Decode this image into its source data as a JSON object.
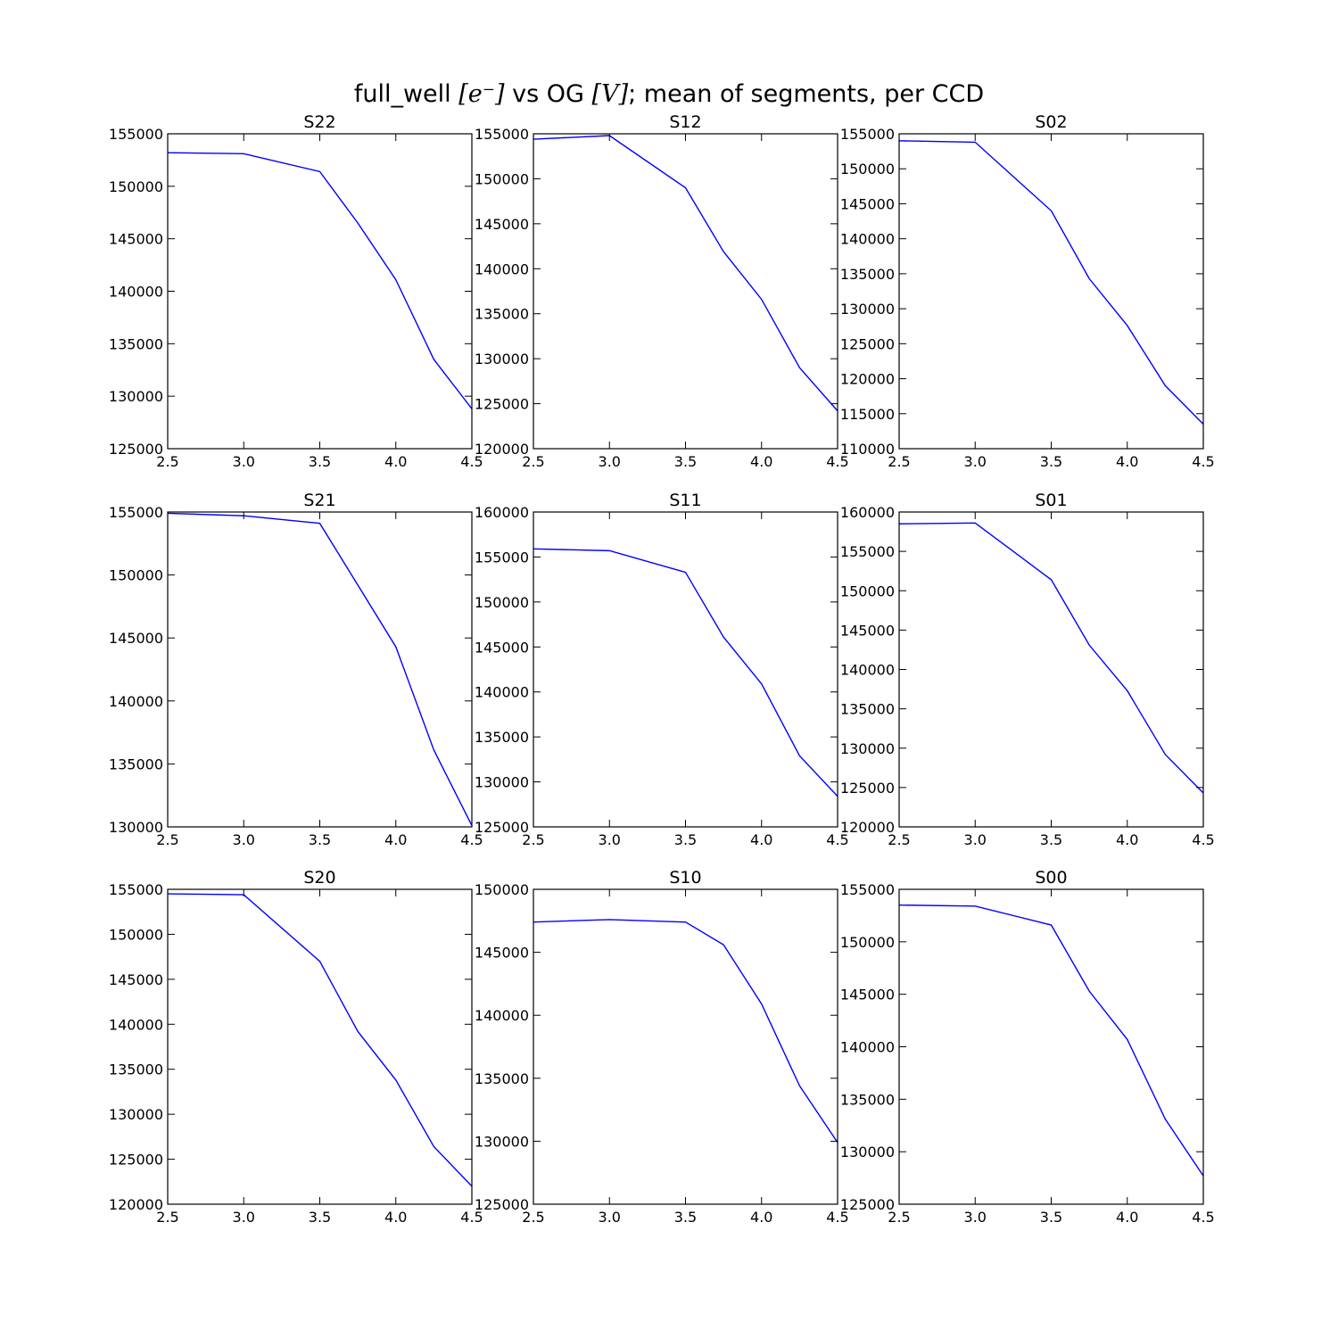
{
  "figure": {
    "suptitle_prefix": "full_well ",
    "suptitle_math1": "[e⁻]",
    "suptitle_mid": " vs OG ",
    "suptitle_math2": "[V]",
    "suptitle_suffix": "; mean of segments, per CCD"
  },
  "chart_data": [
    {
      "type": "line",
      "title": "S22",
      "xlim": [
        2.5,
        4.5
      ],
      "ylim": [
        125000,
        155000
      ],
      "xticks": [
        2.5,
        3.0,
        3.5,
        4.0,
        4.5
      ],
      "yticks": [
        125000,
        130000,
        135000,
        140000,
        145000,
        150000,
        155000
      ],
      "color": "#0000ff",
      "x": [
        2.5,
        3.0,
        3.5,
        3.75,
        4.0,
        4.25,
        4.5
      ],
      "y": [
        153200,
        153100,
        151400,
        146500,
        141100,
        133500,
        128800
      ]
    },
    {
      "type": "line",
      "title": "S12",
      "xlim": [
        2.5,
        4.5
      ],
      "ylim": [
        120000,
        155000
      ],
      "xticks": [
        2.5,
        3.0,
        3.5,
        4.0,
        4.5
      ],
      "yticks": [
        120000,
        125000,
        130000,
        135000,
        140000,
        145000,
        150000,
        155000
      ],
      "color": "#0000ff",
      "x": [
        2.5,
        3.0,
        3.5,
        3.75,
        4.0,
        4.25,
        4.5
      ],
      "y": [
        154400,
        154800,
        149000,
        141900,
        136600,
        129000,
        124200
      ]
    },
    {
      "type": "line",
      "title": "S02",
      "xlim": [
        2.5,
        4.5
      ],
      "ylim": [
        110000,
        155000
      ],
      "xticks": [
        2.5,
        3.0,
        3.5,
        4.0,
        4.5
      ],
      "yticks": [
        110000,
        115000,
        120000,
        125000,
        130000,
        135000,
        140000,
        145000,
        150000,
        155000
      ],
      "color": "#0000ff",
      "x": [
        2.5,
        3.0,
        3.5,
        3.75,
        4.0,
        4.25,
        4.5
      ],
      "y": [
        154000,
        153800,
        144000,
        134300,
        127600,
        119000,
        113500
      ]
    },
    {
      "type": "line",
      "title": "S21",
      "xlim": [
        2.5,
        4.5
      ],
      "ylim": [
        130000,
        155000
      ],
      "xticks": [
        2.5,
        3.0,
        3.5,
        4.0,
        4.5
      ],
      "yticks": [
        130000,
        135000,
        140000,
        145000,
        150000,
        155000
      ],
      "color": "#0000ff",
      "x": [
        2.5,
        3.0,
        3.5,
        3.75,
        4.0,
        4.25,
        4.5
      ],
      "y": [
        154900,
        154700,
        154100,
        149200,
        144300,
        136100,
        130100
      ]
    },
    {
      "type": "line",
      "title": "S11",
      "xlim": [
        2.5,
        4.5
      ],
      "ylim": [
        125000,
        160000
      ],
      "xticks": [
        2.5,
        3.0,
        3.5,
        4.0,
        4.5
      ],
      "yticks": [
        125000,
        130000,
        135000,
        140000,
        145000,
        150000,
        155000,
        160000
      ],
      "color": "#0000ff",
      "x": [
        2.5,
        3.0,
        3.5,
        3.75,
        4.0,
        4.25,
        4.5
      ],
      "y": [
        155900,
        155700,
        153300,
        146100,
        140900,
        132900,
        128400
      ]
    },
    {
      "type": "line",
      "title": "S01",
      "xlim": [
        2.5,
        4.5
      ],
      "ylim": [
        120000,
        160000
      ],
      "xticks": [
        2.5,
        3.0,
        3.5,
        4.0,
        4.5
      ],
      "yticks": [
        120000,
        125000,
        130000,
        135000,
        140000,
        145000,
        150000,
        155000,
        160000
      ],
      "color": "#0000ff",
      "x": [
        2.5,
        3.0,
        3.5,
        3.75,
        4.0,
        4.25,
        4.5
      ],
      "y": [
        158500,
        158600,
        151400,
        143100,
        137300,
        129200,
        124300
      ]
    },
    {
      "type": "line",
      "title": "S20",
      "xlim": [
        2.5,
        4.5
      ],
      "ylim": [
        120000,
        155000
      ],
      "xticks": [
        2.5,
        3.0,
        3.5,
        4.0,
        4.5
      ],
      "yticks": [
        120000,
        125000,
        130000,
        135000,
        140000,
        145000,
        150000,
        155000
      ],
      "color": "#0000ff",
      "x": [
        2.5,
        3.0,
        3.5,
        3.75,
        4.0,
        4.25,
        4.5
      ],
      "y": [
        154500,
        154400,
        147000,
        139200,
        133800,
        126400,
        122000
      ]
    },
    {
      "type": "line",
      "title": "S10",
      "xlim": [
        2.5,
        4.5
      ],
      "ylim": [
        125000,
        150000
      ],
      "xticks": [
        2.5,
        3.0,
        3.5,
        4.0,
        4.5
      ],
      "yticks": [
        125000,
        130000,
        135000,
        140000,
        145000,
        150000
      ],
      "color": "#0000ff",
      "x": [
        2.5,
        3.0,
        3.5,
        3.75,
        4.0,
        4.25,
        4.5
      ],
      "y": [
        147400,
        147600,
        147400,
        145600,
        140900,
        134400,
        129900
      ]
    },
    {
      "type": "line",
      "title": "S00",
      "xlim": [
        2.5,
        4.5
      ],
      "ylim": [
        125000,
        155000
      ],
      "xticks": [
        2.5,
        3.0,
        3.5,
        4.0,
        4.5
      ],
      "yticks": [
        125000,
        130000,
        135000,
        140000,
        145000,
        150000,
        155000
      ],
      "color": "#0000ff",
      "x": [
        2.5,
        3.0,
        3.5,
        3.75,
        4.0,
        4.25,
        4.5
      ],
      "y": [
        153500,
        153400,
        151600,
        145300,
        140700,
        133100,
        127700
      ]
    }
  ]
}
